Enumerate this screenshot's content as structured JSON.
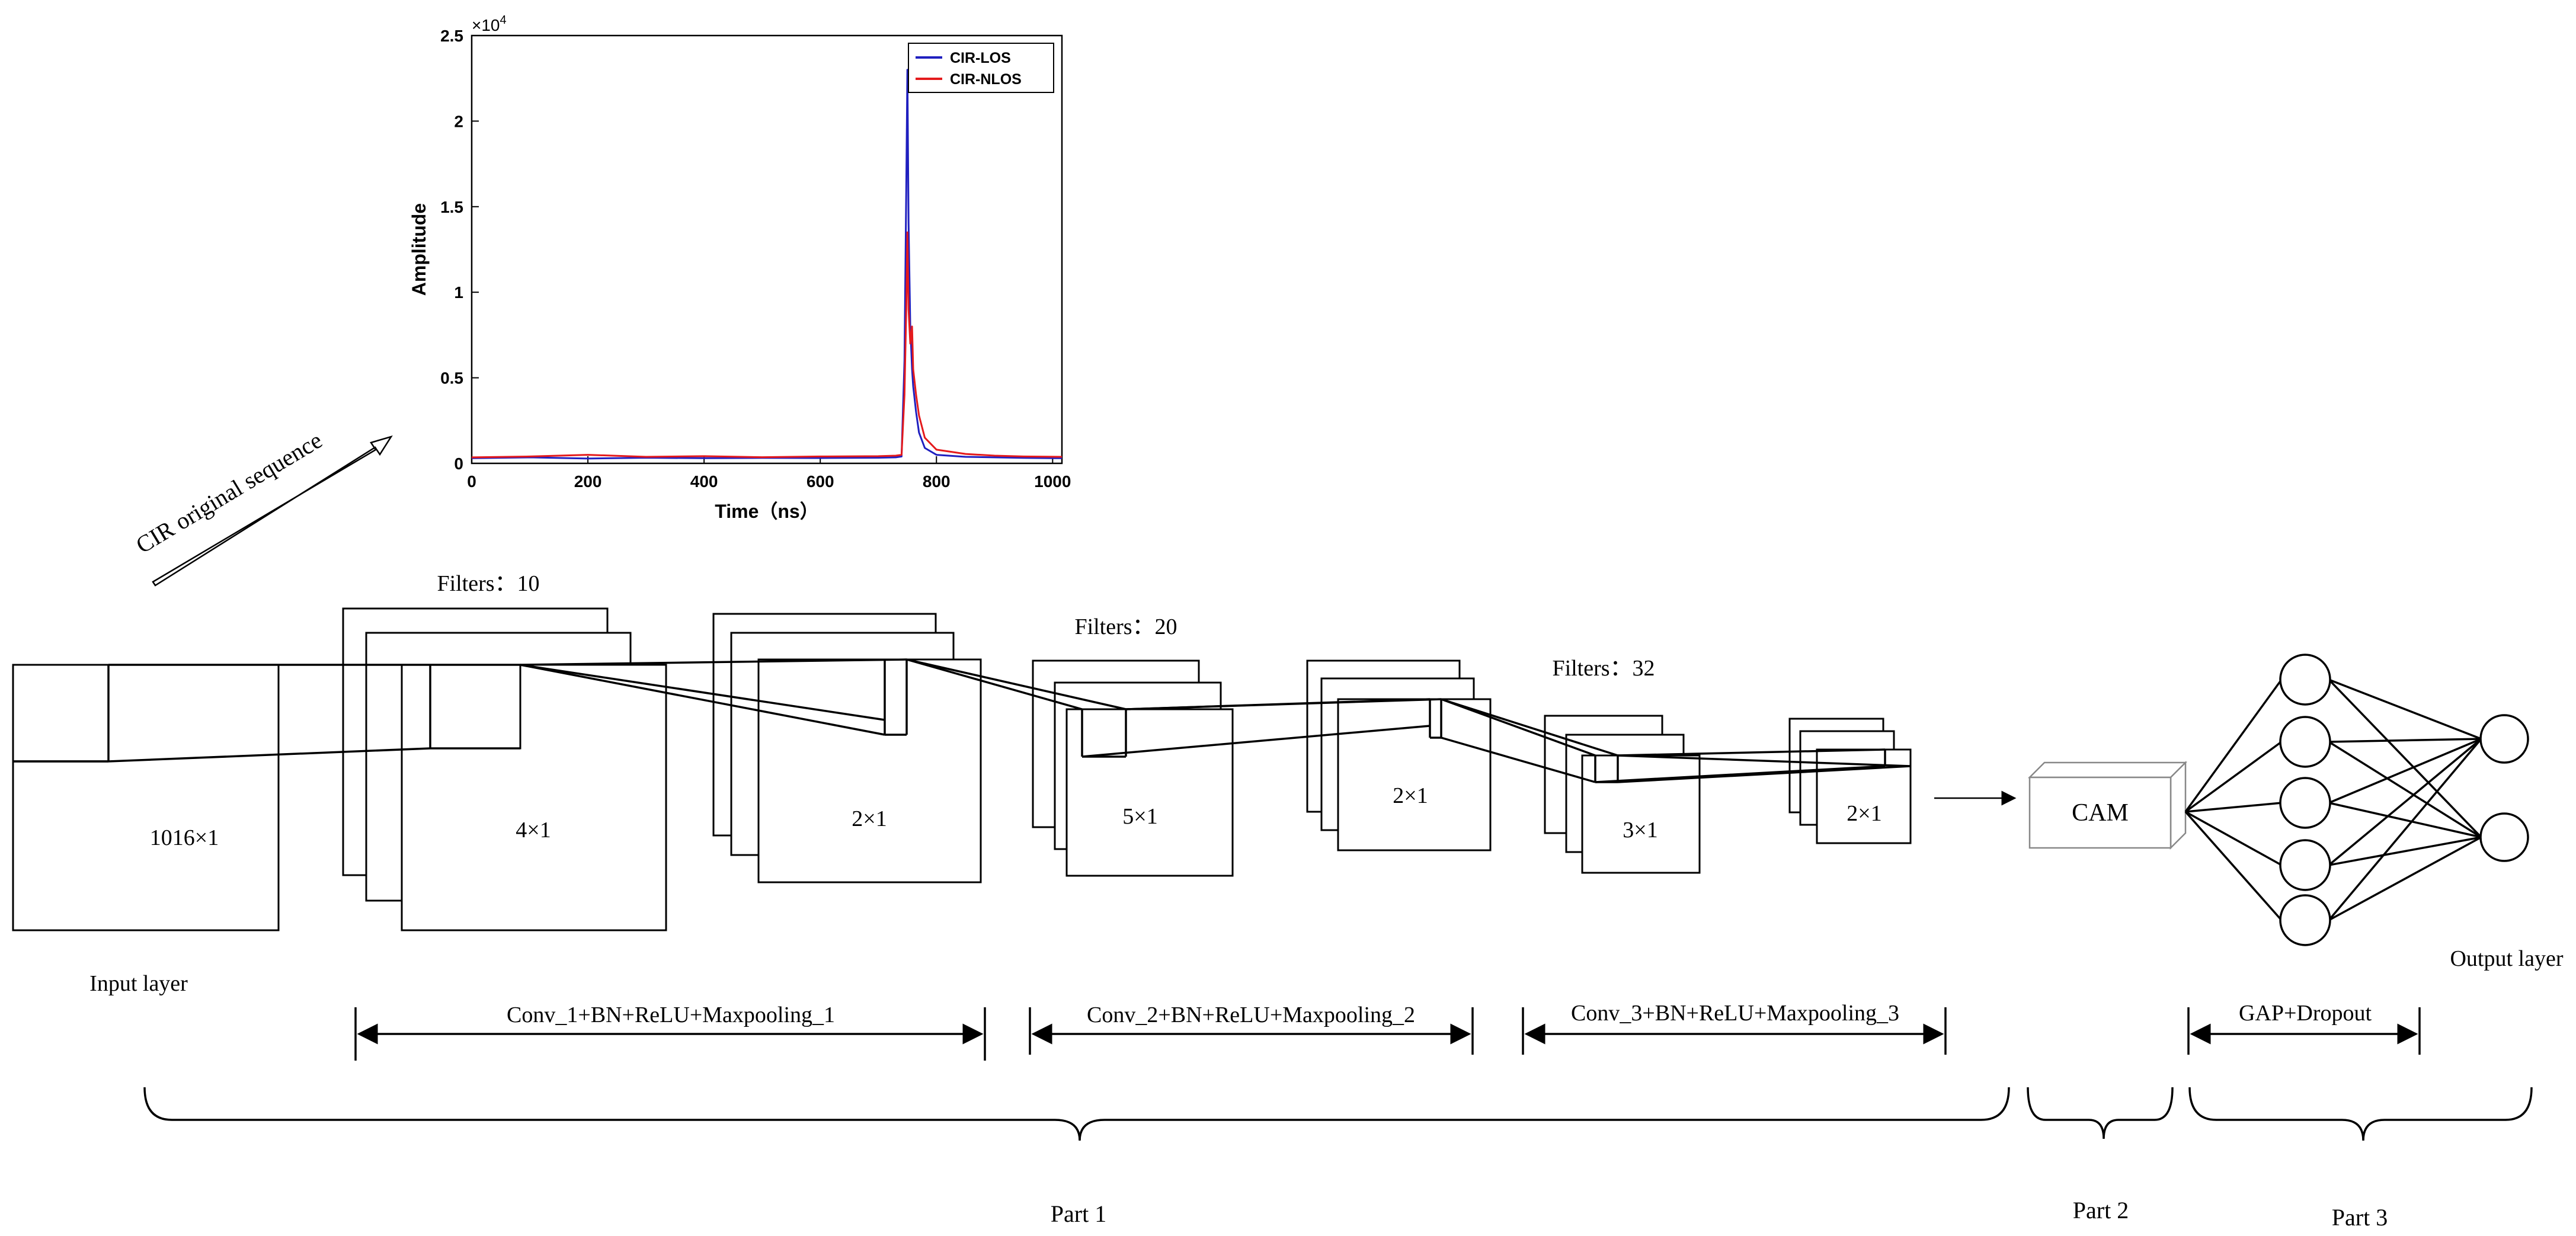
{
  "chart_data": {
    "type": "line",
    "title": "",
    "xlabel": "Time（ns）",
    "ylabel": "Amplitude",
    "xlim": [
      0,
      1016
    ],
    "ylim": [
      0,
      25000
    ],
    "y_exponent_label": "×10",
    "y_exponent_power": "4",
    "xticks": [
      "0",
      "200",
      "400",
      "600",
      "800",
      "1000"
    ],
    "yticks": [
      "0",
      "0.5",
      "1",
      "1.5",
      "2",
      "2.5"
    ],
    "grid": false,
    "legend_position": "top-right",
    "series": [
      {
        "name": "CIR-LOS",
        "color": "#1f1fbf",
        "x": [
          0,
          100,
          200,
          300,
          400,
          500,
          600,
          700,
          730,
          740,
          745,
          748,
          750,
          752,
          755,
          758,
          760,
          765,
          770,
          780,
          800,
          850,
          900,
          950,
          1016
        ],
        "y": [
          300,
          350,
          280,
          330,
          300,
          320,
          310,
          330,
          350,
          400,
          6000,
          16000,
          23000,
          14000,
          8000,
          5500,
          4500,
          3000,
          1800,
          900,
          500,
          380,
          350,
          320,
          300
        ]
      },
      {
        "name": "CIR-NLOS",
        "color": "#e41a1c",
        "x": [
          0,
          100,
          200,
          300,
          400,
          500,
          600,
          700,
          730,
          740,
          745,
          748,
          750,
          752,
          755,
          758,
          760,
          765,
          770,
          780,
          800,
          850,
          900,
          950,
          1016
        ],
        "y": [
          350,
          400,
          500,
          380,
          420,
          360,
          400,
          420,
          450,
          500,
          4000,
          9000,
          13500,
          9000,
          7000,
          8000,
          5500,
          4000,
          2800,
          1500,
          800,
          550,
          450,
          400,
          380
        ]
      }
    ]
  },
  "diagram": {
    "sequence_arrow_label": "CIR original sequence",
    "input_block": {
      "size_label": "1016×1",
      "caption": "Input layer"
    },
    "conv1": {
      "filters_label": "Filters：10",
      "conv_size": "4×1",
      "pool_size": "2×1"
    },
    "conv2": {
      "filters_label": "Filters：20",
      "conv_size": "5×1",
      "pool_size": "2×1"
    },
    "conv3": {
      "filters_label": "Filters：32",
      "conv_size": "3×1",
      "pool_size": "2×1"
    },
    "cam_label": "CAM",
    "output_caption": "Output layer",
    "stage_labels": {
      "conv1": "Conv_1+BN+ReLU+Maxpooling_1",
      "conv2": "Conv_2+BN+ReLU+Maxpooling_2",
      "conv3": "Conv_3+BN+ReLU+Maxpooling_3",
      "gap": "GAP+Dropout"
    },
    "parts": {
      "part1": "Part 1",
      "part2": "Part 2",
      "part3": "Part 3"
    }
  }
}
